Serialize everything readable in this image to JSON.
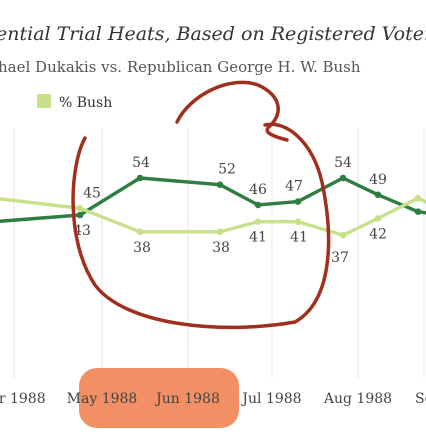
{
  "chart_data": {
    "type": "line",
    "title": "ential Trial Heats, Based on Registered Voters*",
    "subtitle": "hael Dukakis vs. Republican George H. W. Bush",
    "legend": {
      "visible_label": "% Bush",
      "placement": "top-left"
    },
    "x_tick_labels": [
      "or 1988",
      "May 1988",
      "Jun 1988",
      "Jul 1988",
      "Aug 1988",
      "Se"
    ],
    "ylim": [
      20,
      70
    ],
    "grid": "vertical",
    "series": [
      {
        "key": "dukakis",
        "color": "#2e7d43",
        "points": [
          {
            "x": "Mar 1988",
            "y": 41,
            "label": ""
          },
          {
            "x": "Apr 1988",
            "y": 43,
            "label": "43"
          },
          {
            "x": "May 1988",
            "y": 54,
            "label": "54"
          },
          {
            "x": "Jun 1988",
            "y": 52,
            "label": "52"
          },
          {
            "x": "Jun 1988",
            "y": 46,
            "label": "46"
          },
          {
            "x": "Jul 1988",
            "y": 47,
            "label": "47"
          },
          {
            "x": "Jul 1988",
            "y": 54,
            "label": "54"
          },
          {
            "x": "Aug 1988",
            "y": 49,
            "label": "49"
          },
          {
            "x": "Aug 1988",
            "y": 44,
            "label": ""
          },
          {
            "x": "Sep 1988",
            "y": 43,
            "label": ""
          }
        ]
      },
      {
        "key": "bush",
        "name": "% Bush",
        "color": "#c9e08a",
        "points": [
          {
            "x": "Mar 1988",
            "y": 48,
            "label": ""
          },
          {
            "x": "Apr 1988",
            "y": 45,
            "label": "45"
          },
          {
            "x": "May 1988",
            "y": 38,
            "label": "38"
          },
          {
            "x": "Jun 1988",
            "y": 38,
            "label": "38"
          },
          {
            "x": "Jun 1988",
            "y": 41,
            "label": "41"
          },
          {
            "x": "Jul 1988",
            "y": 41,
            "label": "41"
          },
          {
            "x": "Jul 1988",
            "y": 37,
            "label": "37"
          },
          {
            "x": "Aug 1988",
            "y": 42,
            "label": "42"
          },
          {
            "x": "Aug 1988",
            "y": 48,
            "label": ""
          },
          {
            "x": "Sep 1988",
            "y": 45,
            "label": ""
          }
        ]
      }
    ]
  },
  "annotations": {
    "circle_color": "#a0301e",
    "highlight_color": "#f0804e"
  }
}
